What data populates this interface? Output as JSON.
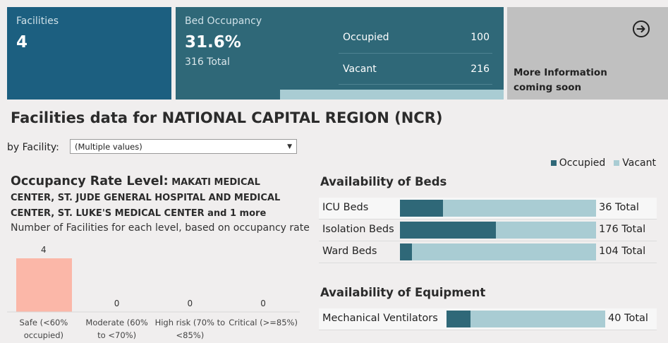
{
  "facilities_card": {
    "label": "Facilities",
    "value": "4"
  },
  "bed_card": {
    "label": "Bed Occupancy",
    "value": "31.6%",
    "sub": "316 Total",
    "rows": [
      {
        "label": "Occupied",
        "value": "100"
      },
      {
        "label": "Vacant",
        "value": "216"
      }
    ]
  },
  "more_card": {
    "line1": "More Information",
    "line2": "coming soon",
    "icon": "arrow-right-circle-icon"
  },
  "page_title": "Facilities data for NATIONAL CAPITAL REGION (NCR)",
  "filter": {
    "label": "by Facility:",
    "value": "(Multiple values)"
  },
  "legend": [
    {
      "label": "Occupied",
      "color": "#2f6878"
    },
    {
      "label": "Vacant",
      "color": "#a9ccd3"
    }
  ],
  "occupancy": {
    "title_prefix": "Occupancy Rate Level:",
    "title_facilities": "MAKATI MEDICAL CENTER, ST. JUDE GENERAL HOSPITAL AND MEDICAL CENTER, ST. LUKE'S MEDICAL CENTER and 1 more",
    "subtitle": "Number of Facilities for each level, based on occupancy rate"
  },
  "chart_data": {
    "type": "bar",
    "categories": [
      "Safe (<60% occupied)",
      "Moderate (60% to <70%)",
      "High risk (70% to <85%)",
      "Critical (>=85%)"
    ],
    "values": [
      4,
      0,
      0,
      0
    ],
    "bar_color": "#fbb7a8",
    "ylim": [
      0,
      4
    ]
  },
  "beds": {
    "title": "Availability of Beds",
    "rows": [
      {
        "label": "ICU Beds",
        "occupied_fraction": 0.22,
        "total": "36 Total"
      },
      {
        "label": "Isolation Beds",
        "occupied_fraction": 0.49,
        "total": "176 Total"
      },
      {
        "label": "Ward Beds",
        "occupied_fraction": 0.06,
        "total": "104 Total"
      }
    ]
  },
  "equipment": {
    "title": "Availability of Equipment",
    "rows": [
      {
        "label": "Mechanical Ventilators",
        "occupied_fraction": 0.15,
        "total": "40 Total"
      }
    ]
  }
}
